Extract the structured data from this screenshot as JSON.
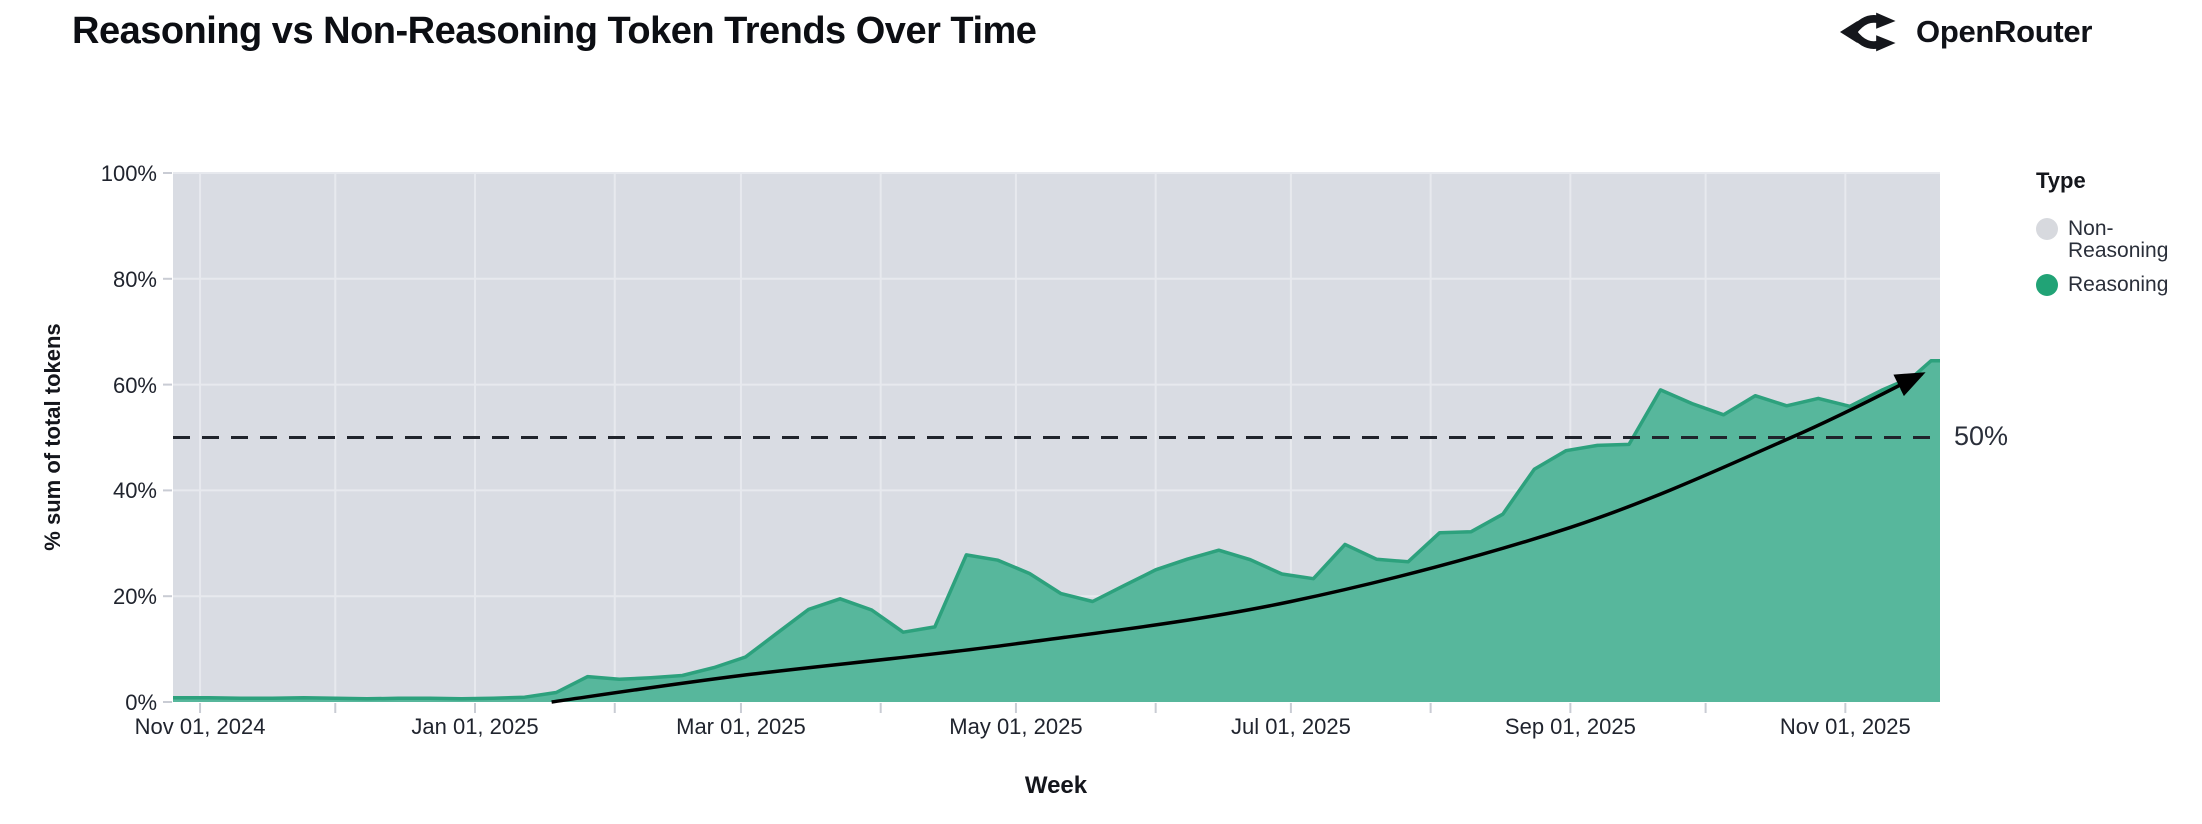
{
  "header": {
    "title": "Reasoning vs Non-Reasoning Token Trends Over Time",
    "brand": "OpenRouter"
  },
  "chart": {
    "x_axis_title": "Week",
    "y_axis_title": "% sum of total tokens",
    "x_tick_labels": [
      "Nov 01, 2024",
      "Jan 01, 2025",
      "Mar 01, 2025",
      "May 01, 2025",
      "Jul 01, 2025",
      "Sep 01, 2025",
      "Nov 01, 2025"
    ],
    "y_tick_labels": [
      "0%",
      "20%",
      "40%",
      "60%",
      "80%",
      "100%"
    ],
    "threshold_label": "50%",
    "legend": {
      "title": "Type",
      "items": [
        {
          "label": "Non-Reasoning",
          "color": "#d7d9de"
        },
        {
          "label": "Reasoning",
          "color": "#21a376"
        }
      ]
    },
    "colors": {
      "reasoning_fill": "#57b79c",
      "reasoning_line": "#2da17d",
      "non_reasoning_fill": "#d9dce3",
      "gridline": "#e7e9ee",
      "axis_tick": "#c9ccd4",
      "threshold_line": "#20242c",
      "trend_line": "#000000",
      "axis_text": "#20242e"
    }
  },
  "chart_data": {
    "type": "area",
    "variant": "100-percent-stacked",
    "title": "Reasoning vs Non-Reasoning Token Trends Over Time",
    "xlabel": "Week",
    "ylabel": "% sum of total tokens",
    "ylim": [
      0,
      100
    ],
    "x_range": [
      "2024-10-26",
      "2025-11-22"
    ],
    "x_tick_dates": [
      "2024-11-01",
      "2025-01-01",
      "2025-03-01",
      "2025-05-01",
      "2025-07-01",
      "2025-09-01",
      "2025-11-01"
    ],
    "gridlines": {
      "horizontal_pct": [
        20,
        40,
        60,
        80,
        100
      ],
      "vertical": "monthly"
    },
    "legend_position": "right",
    "weeks": [
      "2024-10-27",
      "2024-11-03",
      "2024-11-10",
      "2024-11-17",
      "2024-11-24",
      "2024-12-01",
      "2024-12-08",
      "2024-12-15",
      "2024-12-22",
      "2024-12-29",
      "2025-01-05",
      "2025-01-12",
      "2025-01-19",
      "2025-01-26",
      "2025-02-02",
      "2025-02-09",
      "2025-02-16",
      "2025-02-23",
      "2025-03-02",
      "2025-03-09",
      "2025-03-16",
      "2025-03-23",
      "2025-03-30",
      "2025-04-06",
      "2025-04-13",
      "2025-04-20",
      "2025-04-27",
      "2025-05-04",
      "2025-05-11",
      "2025-05-18",
      "2025-05-25",
      "2025-06-01",
      "2025-06-08",
      "2025-06-15",
      "2025-06-22",
      "2025-06-29",
      "2025-07-06",
      "2025-07-13",
      "2025-07-20",
      "2025-07-27",
      "2025-08-03",
      "2025-08-10",
      "2025-08-17",
      "2025-08-24",
      "2025-08-31",
      "2025-09-07",
      "2025-09-14",
      "2025-09-21",
      "2025-09-28",
      "2025-10-05",
      "2025-10-12",
      "2025-10-19",
      "2025-10-26",
      "2025-11-02",
      "2025-11-09",
      "2025-11-16",
      "2025-11-20"
    ],
    "series": [
      {
        "name": "Reasoning",
        "color": "#21a376",
        "values": [
          0.8,
          0.8,
          0.7,
          0.7,
          0.8,
          0.7,
          0.6,
          0.7,
          0.7,
          0.6,
          0.7,
          0.9,
          1.8,
          4.8,
          4.3,
          4.6,
          5.0,
          6.5,
          8.5,
          13.0,
          17.5,
          19.5,
          17.4,
          13.2,
          14.2,
          27.8,
          26.8,
          24.3,
          20.5,
          19.0,
          22.0,
          25.0,
          27.0,
          28.7,
          26.9,
          24.2,
          23.3,
          29.8,
          27.0,
          26.5,
          32.0,
          32.2,
          35.5,
          44.0,
          47.5,
          48.5,
          48.7,
          59.0,
          56.4,
          54.3,
          57.9,
          56.0,
          57.4,
          55.9,
          58.9,
          61.5,
          64.5
        ]
      },
      {
        "name": "Non-Reasoning",
        "color": "#d7d9de",
        "values": [
          99.2,
          99.2,
          99.3,
          99.3,
          99.2,
          99.3,
          99.4,
          99.3,
          99.3,
          99.4,
          99.3,
          99.1,
          98.2,
          95.2,
          95.7,
          95.4,
          95.0,
          93.5,
          91.5,
          87.0,
          82.5,
          80.5,
          82.6,
          86.8,
          85.8,
          72.2,
          73.2,
          75.7,
          79.5,
          81.0,
          78.0,
          75.0,
          73.0,
          71.3,
          73.1,
          75.8,
          76.7,
          70.2,
          73.0,
          73.5,
          68.0,
          67.8,
          64.5,
          56.0,
          52.5,
          51.5,
          51.3,
          41.0,
          43.6,
          45.7,
          42.1,
          44.0,
          42.6,
          44.1,
          41.1,
          38.5,
          35.5
        ]
      }
    ],
    "annotations": {
      "threshold_line": {
        "value": 50,
        "style": "dashed",
        "label": "50%"
      },
      "trend_arrow": {
        "description": "black smoothed trend curve with arrowhead",
        "points": [
          [
            "2025-01-18",
            0
          ],
          [
            "2025-03-01",
            5
          ],
          [
            "2025-05-01",
            11
          ],
          [
            "2025-07-01",
            19
          ],
          [
            "2025-09-01",
            33
          ],
          [
            "2025-10-20",
            50
          ],
          [
            "2025-11-18",
            62
          ]
        ]
      }
    }
  }
}
